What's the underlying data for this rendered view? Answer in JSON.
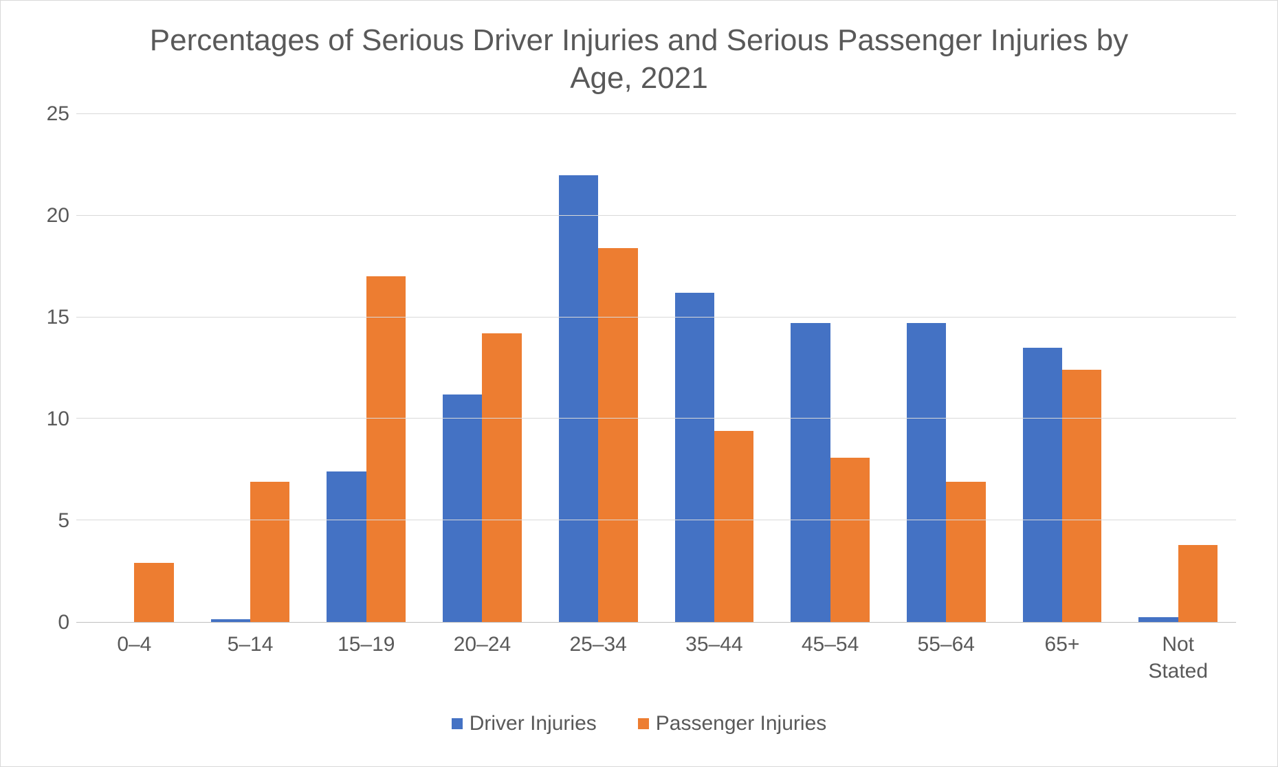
{
  "chart": {
    "type": "bar",
    "title": "Percentages of Serious Driver Injuries and Serious Passenger Injuries by Age, 2021",
    "title_fontsize": 44,
    "title_color": "#595959",
    "categories": [
      "0–4",
      "5–14",
      "15–19",
      "20–24",
      "25–34",
      "35–44",
      "45–54",
      "55–64",
      "65+",
      "Not Stated"
    ],
    "series": [
      {
        "name": "Driver Injuries",
        "color": "#4472c4",
        "values": [
          0,
          0.15,
          7.4,
          11.2,
          22.0,
          16.2,
          14.7,
          14.7,
          13.5,
          0.25
        ]
      },
      {
        "name": "Passenger Injuries",
        "color": "#ed7d31",
        "values": [
          2.9,
          6.9,
          17.0,
          14.2,
          18.4,
          9.4,
          8.1,
          6.9,
          12.4,
          3.8
        ]
      }
    ],
    "ylim": [
      0,
      25
    ],
    "ytick_step": 5,
    "yticks": [
      0,
      5,
      10,
      15,
      20,
      25
    ],
    "axis_label_fontsize": 30,
    "axis_label_color": "#595959",
    "legend_fontsize": 30,
    "background_color": "#ffffff",
    "grid_color": "#d9d9d9",
    "axis_line_color": "#bfbfbf",
    "bar_gap": 0,
    "bar_width_pct": 34
  }
}
